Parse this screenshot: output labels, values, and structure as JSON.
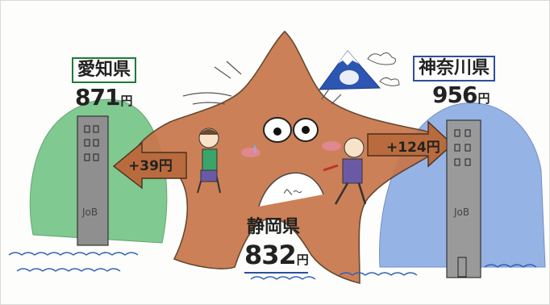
{
  "aichi": {
    "name": "愛知県",
    "wage": "871",
    "yen": "円",
    "diff": "+39円",
    "box_color": "#1f7a3a"
  },
  "shizuoka": {
    "name": "静岡県",
    "wage": "832",
    "yen": "円",
    "box_color": "#2b4f9e"
  },
  "kanagawa": {
    "name": "神奈川県",
    "wage": "956",
    "yen": "円",
    "diff": "+124円",
    "box_color": "#2b4f9e"
  },
  "sign_left": "JoB",
  "sign_right": "JoB",
  "sound": "へ～",
  "colors": {
    "star": "#c8764a",
    "aichi_hill": "#3fae5c",
    "kanagawa_hill": "#3f6fc4",
    "fuji": "#2a4fa8",
    "water": "#2d5fb8"
  }
}
